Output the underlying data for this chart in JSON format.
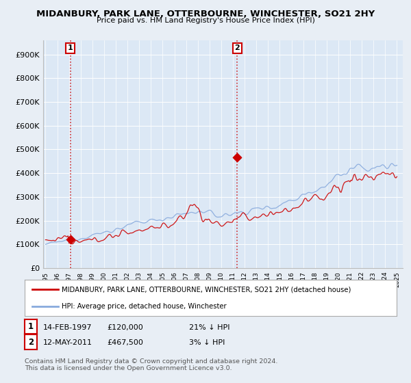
{
  "title": "MIDANBURY, PARK LANE, OTTERBOURNE, WINCHESTER, SO21 2HY",
  "subtitle": "Price paid vs. HM Land Registry's House Price Index (HPI)",
  "ylabel_ticks": [
    "£0",
    "£100K",
    "£200K",
    "£300K",
    "£400K",
    "£500K",
    "£600K",
    "£700K",
    "£800K",
    "£900K"
  ],
  "ytick_values": [
    0,
    100000,
    200000,
    300000,
    400000,
    500000,
    600000,
    700000,
    800000,
    900000
  ],
  "ylim": [
    0,
    960000
  ],
  "xlim_start": 1994.8,
  "xlim_end": 2025.5,
  "sale1_year": 1997.12,
  "sale1_price": 120000,
  "sale1_label": "1",
  "sale1_date": "14-FEB-1997",
  "sale1_pct": "21%",
  "sale2_year": 2011.37,
  "sale2_price": 467500,
  "sale2_label": "2",
  "sale2_date": "12-MAY-2011",
  "sale2_pct": "3%",
  "property_color": "#cc0000",
  "hpi_color": "#88aadd",
  "legend_property": "MIDANBURY, PARK LANE, OTTERBOURNE, WINCHESTER, SO21 2HY (detached house)",
  "legend_hpi": "HPI: Average price, detached house, Winchester",
  "footer1": "Contains HM Land Registry data © Crown copyright and database right 2024.",
  "footer2": "This data is licensed under the Open Government Licence v3.0.",
  "background_color": "#e8eef5",
  "plot_bg_color": "#dce8f5"
}
